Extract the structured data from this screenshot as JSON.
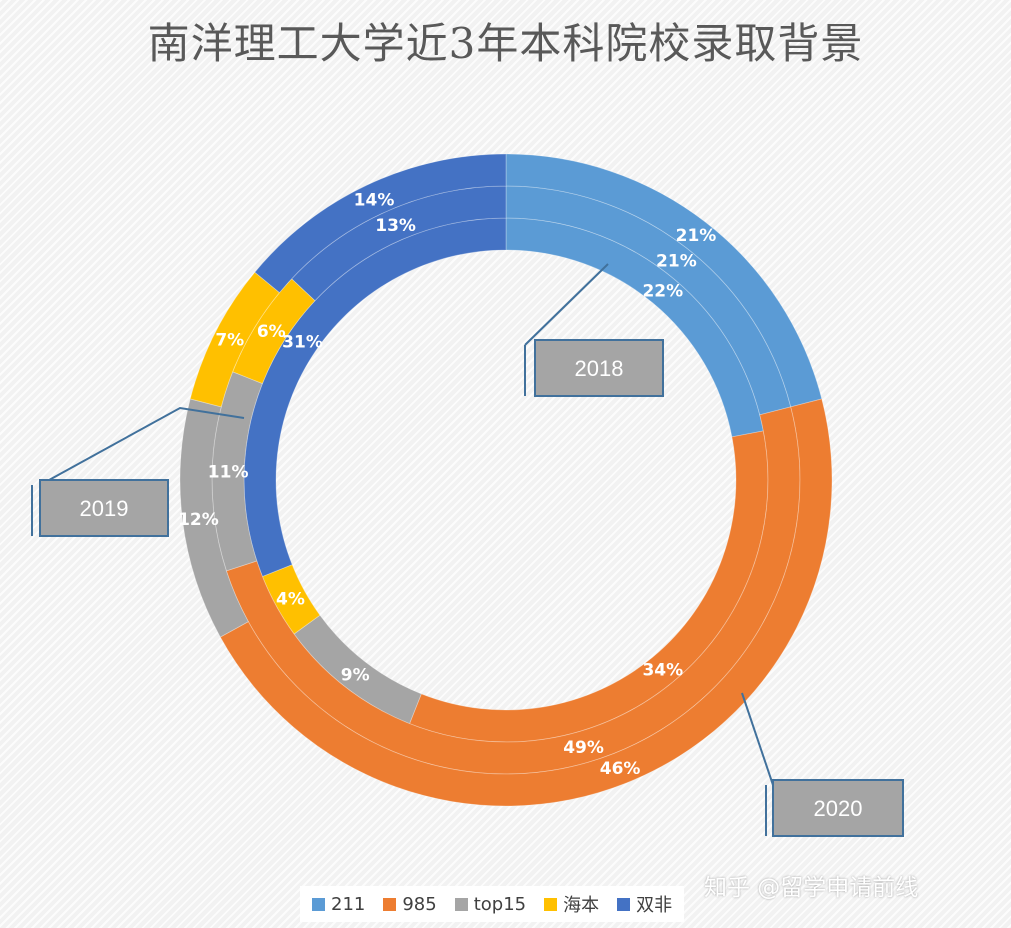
{
  "title": "南洋理工大学近3年本科院校录取背景",
  "watermark": "知乎 @留学申请前线",
  "chart_data": {
    "type": "pie",
    "variant": "multi-ring-donut",
    "title": "南洋理工大学近3年本科院校录取背景",
    "legend_position": "bottom",
    "categories": [
      "211",
      "985",
      "top15",
      "海本",
      "双非"
    ],
    "colors": [
      "#5b9bd5",
      "#ed7d31",
      "#a5a5a5",
      "#ffc000",
      "#4472c4"
    ],
    "series": [
      {
        "name": "2018",
        "values": [
          22,
          34,
          9,
          4,
          31
        ],
        "labels": [
          "22%",
          "34%",
          "9%",
          "4%",
          "31%"
        ]
      },
      {
        "name": "2019",
        "values": [
          21,
          49,
          11,
          6,
          13
        ],
        "labels": [
          "21%",
          "49%",
          "11%",
          "6%",
          "13%"
        ]
      },
      {
        "name": "2020",
        "values": [
          21,
          46,
          12,
          7,
          14
        ],
        "labels": [
          "21%",
          "46%",
          "12%",
          "7%",
          "14%"
        ]
      }
    ]
  }
}
